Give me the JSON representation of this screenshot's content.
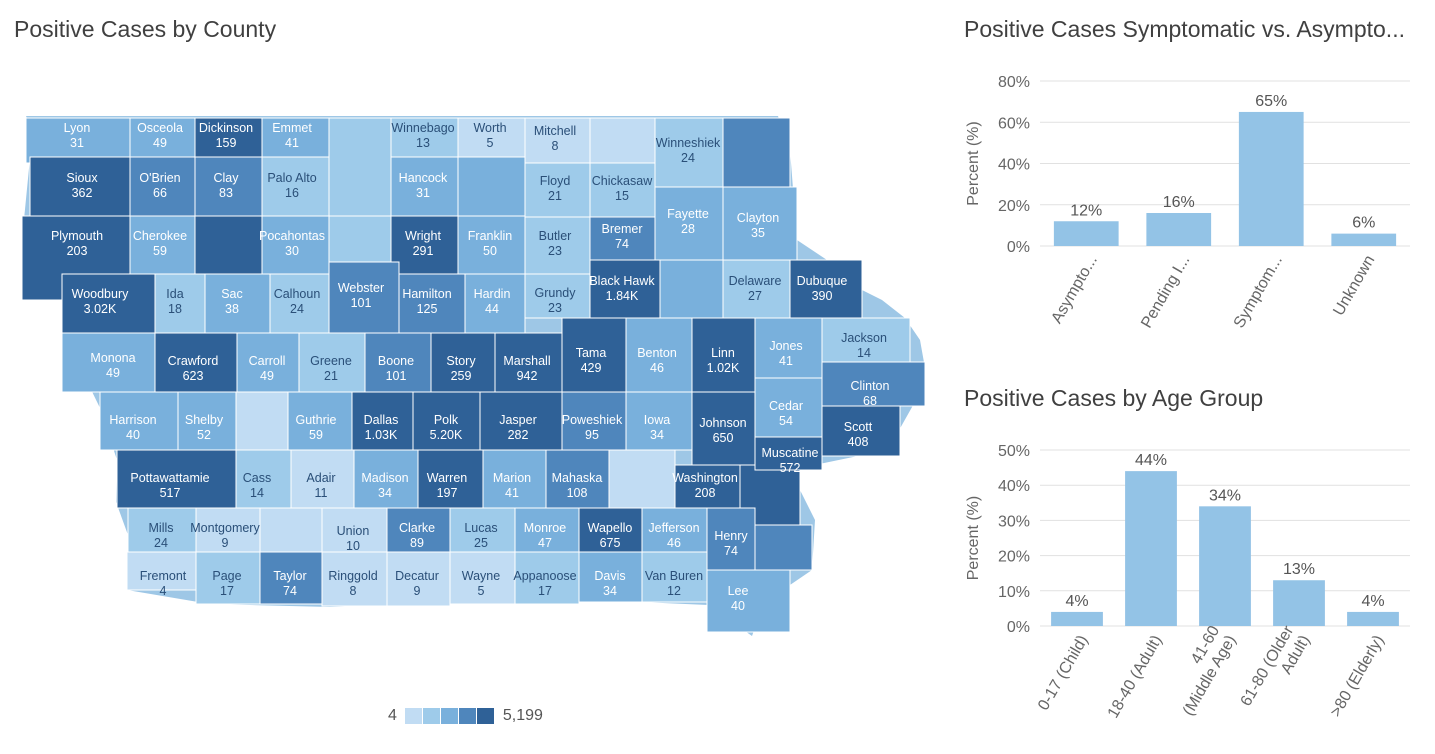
{
  "map": {
    "title": "Positive Cases by County",
    "legend": {
      "min_label": "4",
      "max_label": "5,199",
      "colors": [
        "#c1dcf3",
        "#9ecbea",
        "#79b0dc",
        "#4f86bc",
        "#2f6197"
      ]
    },
    "counties": [
      {
        "name": "Lyon",
        "value": "31"
      },
      {
        "name": "Osceola",
        "value": "49"
      },
      {
        "name": "Dickinson",
        "value": "159"
      },
      {
        "name": "Emmet",
        "value": "41"
      },
      {
        "name": "Winnebago",
        "value": "13"
      },
      {
        "name": "Worth",
        "value": "5"
      },
      {
        "name": "Mitchell",
        "value": "8"
      },
      {
        "name": "Winneshiek",
        "value": "24"
      },
      {
        "name": "Sioux",
        "value": "362"
      },
      {
        "name": "O'Brien",
        "value": "66"
      },
      {
        "name": "Clay",
        "value": "83"
      },
      {
        "name": "Palo Alto",
        "value": "16"
      },
      {
        "name": "Hancock",
        "value": "31"
      },
      {
        "name": "Floyd",
        "value": "21"
      },
      {
        "name": "Chickasaw",
        "value": "15"
      },
      {
        "name": "Fayette",
        "value": "28"
      },
      {
        "name": "Clayton",
        "value": "35"
      },
      {
        "name": "Plymouth",
        "value": "203"
      },
      {
        "name": "Cherokee",
        "value": "59"
      },
      {
        "name": "Pocahontas",
        "value": "30"
      },
      {
        "name": "Wright",
        "value": "291"
      },
      {
        "name": "Franklin",
        "value": "50"
      },
      {
        "name": "Butler",
        "value": "23"
      },
      {
        "name": "Bremer",
        "value": "74"
      },
      {
        "name": "Black Hawk",
        "value": "1.84K"
      },
      {
        "name": "Delaware",
        "value": "27"
      },
      {
        "name": "Dubuque",
        "value": "390"
      },
      {
        "name": "Woodbury",
        "value": "3.02K"
      },
      {
        "name": "Ida",
        "value": "18"
      },
      {
        "name": "Sac",
        "value": "38"
      },
      {
        "name": "Calhoun",
        "value": "24"
      },
      {
        "name": "Webster",
        "value": "101"
      },
      {
        "name": "Hamilton",
        "value": "125"
      },
      {
        "name": "Hardin",
        "value": "44"
      },
      {
        "name": "Grundy",
        "value": "23"
      },
      {
        "name": "Tama",
        "value": "429"
      },
      {
        "name": "Benton",
        "value": "46"
      },
      {
        "name": "Linn",
        "value": "1.02K"
      },
      {
        "name": "Jones",
        "value": "41"
      },
      {
        "name": "Jackson",
        "value": "14"
      },
      {
        "name": "Monona",
        "value": "49"
      },
      {
        "name": "Crawford",
        "value": "623"
      },
      {
        "name": "Carroll",
        "value": "49"
      },
      {
        "name": "Greene",
        "value": "21"
      },
      {
        "name": "Boone",
        "value": "101"
      },
      {
        "name": "Story",
        "value": "259"
      },
      {
        "name": "Marshall",
        "value": "942"
      },
      {
        "name": "Clinton",
        "value": "68"
      },
      {
        "name": "Cedar",
        "value": "54"
      },
      {
        "name": "Harrison",
        "value": "40"
      },
      {
        "name": "Shelby",
        "value": "52"
      },
      {
        "name": "Guthrie",
        "value": "59"
      },
      {
        "name": "Dallas",
        "value": "1.03K"
      },
      {
        "name": "Polk",
        "value": "5.20K"
      },
      {
        "name": "Jasper",
        "value": "282"
      },
      {
        "name": "Poweshiek",
        "value": "95"
      },
      {
        "name": "Iowa",
        "value": "34"
      },
      {
        "name": "Johnson",
        "value": "650"
      },
      {
        "name": "Scott",
        "value": "408"
      },
      {
        "name": "Muscatine",
        "value": "572"
      },
      {
        "name": "Pottawattamie",
        "value": "517"
      },
      {
        "name": "Cass",
        "value": "14"
      },
      {
        "name": "Adair",
        "value": "11"
      },
      {
        "name": "Madison",
        "value": "34"
      },
      {
        "name": "Warren",
        "value": "197"
      },
      {
        "name": "Marion",
        "value": "41"
      },
      {
        "name": "Mahaska",
        "value": "108"
      },
      {
        "name": "Washington",
        "value": "208"
      },
      {
        "name": "Mills",
        "value": "24"
      },
      {
        "name": "Montgomery",
        "value": "9"
      },
      {
        "name": "Union",
        "value": "10"
      },
      {
        "name": "Clarke",
        "value": "89"
      },
      {
        "name": "Lucas",
        "value": "25"
      },
      {
        "name": "Monroe",
        "value": "47"
      },
      {
        "name": "Wapello",
        "value": "675"
      },
      {
        "name": "Jefferson",
        "value": "46"
      },
      {
        "name": "Henry",
        "value": "74"
      },
      {
        "name": "Fremont",
        "value": "4"
      },
      {
        "name": "Page",
        "value": "17"
      },
      {
        "name": "Taylor",
        "value": "74"
      },
      {
        "name": "Ringgold",
        "value": "8"
      },
      {
        "name": "Decatur",
        "value": "9"
      },
      {
        "name": "Wayne",
        "value": "5"
      },
      {
        "name": "Appanoose",
        "value": "17"
      },
      {
        "name": "Davis",
        "value": "34"
      },
      {
        "name": "Van Buren",
        "value": "12"
      },
      {
        "name": "Lee",
        "value": "40"
      }
    ]
  },
  "chart_data": [
    {
      "type": "bar",
      "title": "Positive Cases Symptomatic vs. Asympto...",
      "ylabel": "Percent (%)",
      "xlabel": "",
      "categories": [
        "Asympto...",
        "Pending I...",
        "Symptom...",
        "Unknown"
      ],
      "values": [
        12,
        16,
        65,
        6
      ],
      "value_labels": [
        "12%",
        "16%",
        "65%",
        "6%"
      ],
      "ylim": [
        0,
        80
      ],
      "yticks": [
        "0%",
        "20%",
        "40%",
        "60%",
        "80%"
      ],
      "grid": true,
      "bar_color": "#93c3e6"
    },
    {
      "type": "bar",
      "title": "Positive Cases by Age Group",
      "ylabel": "Percent (%)",
      "xlabel": "",
      "categories": [
        "0-17 (Child)",
        "18-40 (Adult)",
        "41-60 (Middle Age)",
        "61-80 (Older Adult)",
        ">80 (Elderly)"
      ],
      "category_lines": [
        [
          "0-17 (Child)"
        ],
        [
          "18-40 (Adult)"
        ],
        [
          "41-60",
          "(Middle Age)"
        ],
        [
          "61-80 (Older",
          "Adult)"
        ],
        [
          ">80 (Elderly)"
        ]
      ],
      "values": [
        4,
        44,
        34,
        13,
        4
      ],
      "value_labels": [
        "4%",
        "44%",
        "34%",
        "13%",
        "4%"
      ],
      "ylim": [
        0,
        50
      ],
      "yticks": [
        "0%",
        "10%",
        "20%",
        "30%",
        "40%",
        "50%"
      ],
      "grid": true,
      "bar_color": "#93c3e6"
    }
  ]
}
